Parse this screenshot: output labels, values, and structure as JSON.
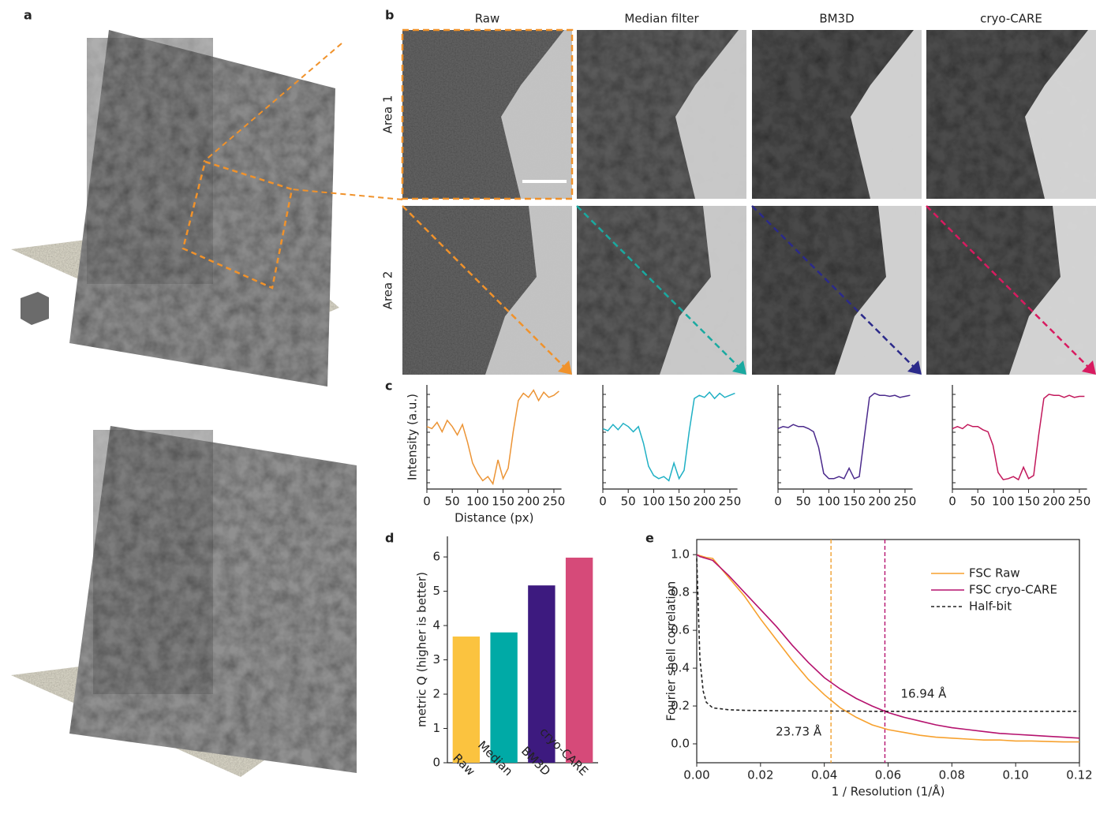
{
  "panels": {
    "letters": [
      "a",
      "b",
      "c",
      "d",
      "e"
    ],
    "columns": [
      "Raw",
      "Median filter",
      "BM3D",
      "cryo-CARE"
    ],
    "rows": [
      "Area 1",
      "Area 2"
    ],
    "arrow_colors": [
      "#f0922b",
      "#1aa9a0",
      "#2b2a8a",
      "#d81b60"
    ]
  },
  "chart_data": [
    {
      "type": "line",
      "ylabel": "Intensity (a.u.)",
      "xlabel": "Distance (px)",
      "xlim": [
        0,
        265
      ],
      "ylim": [
        0,
        1
      ],
      "xticks": [
        0,
        50,
        100,
        150,
        200,
        250
      ],
      "x": [
        0,
        10,
        20,
        30,
        40,
        50,
        60,
        70,
        80,
        90,
        100,
        110,
        120,
        130,
        140,
        150,
        160,
        170,
        180,
        190,
        200,
        210,
        220,
        230,
        240,
        250,
        260
      ],
      "series": [
        {
          "color": "#ec9435",
          "values": [
            0.6,
            0.58,
            0.64,
            0.55,
            0.66,
            0.6,
            0.52,
            0.62,
            0.45,
            0.25,
            0.15,
            0.08,
            0.12,
            0.05,
            0.28,
            0.1,
            0.2,
            0.55,
            0.85,
            0.92,
            0.88,
            0.95,
            0.85,
            0.93,
            0.88,
            0.9,
            0.94
          ]
        }
      ]
    },
    {
      "type": "line",
      "xlim": [
        0,
        265
      ],
      "ylim": [
        0,
        1
      ],
      "xticks": [
        0,
        50,
        100,
        150,
        200,
        250
      ],
      "x": [
        0,
        10,
        20,
        30,
        40,
        50,
        60,
        70,
        80,
        90,
        100,
        110,
        120,
        130,
        140,
        150,
        160,
        170,
        180,
        190,
        200,
        210,
        220,
        230,
        240,
        250,
        260
      ],
      "series": [
        {
          "color": "#1fb0c4",
          "values": [
            0.58,
            0.56,
            0.62,
            0.57,
            0.63,
            0.6,
            0.55,
            0.6,
            0.44,
            0.22,
            0.13,
            0.1,
            0.12,
            0.08,
            0.25,
            0.1,
            0.18,
            0.55,
            0.87,
            0.9,
            0.88,
            0.93,
            0.87,
            0.92,
            0.88,
            0.9,
            0.92
          ]
        }
      ]
    },
    {
      "type": "line",
      "xlim": [
        0,
        265
      ],
      "ylim": [
        0,
        1
      ],
      "xticks": [
        0,
        50,
        100,
        150,
        200,
        250
      ],
      "x": [
        0,
        10,
        20,
        30,
        40,
        50,
        60,
        70,
        80,
        90,
        100,
        110,
        120,
        130,
        140,
        150,
        160,
        170,
        180,
        190,
        200,
        210,
        220,
        230,
        240,
        250,
        260
      ],
      "series": [
        {
          "color": "#4b2a8c",
          "values": [
            0.58,
            0.6,
            0.59,
            0.62,
            0.6,
            0.6,
            0.58,
            0.55,
            0.4,
            0.15,
            0.1,
            0.1,
            0.12,
            0.1,
            0.2,
            0.1,
            0.12,
            0.5,
            0.88,
            0.92,
            0.9,
            0.9,
            0.89,
            0.9,
            0.88,
            0.89,
            0.9
          ]
        }
      ]
    },
    {
      "type": "line",
      "xlim": [
        0,
        265
      ],
      "ylim": [
        0,
        1
      ],
      "xticks": [
        0,
        50,
        100,
        150,
        200,
        250
      ],
      "x": [
        0,
        10,
        20,
        30,
        40,
        50,
        60,
        70,
        80,
        90,
        100,
        110,
        120,
        130,
        140,
        150,
        160,
        170,
        180,
        190,
        200,
        210,
        220,
        230,
        240,
        250,
        260
      ],
      "series": [
        {
          "color": "#c2185b",
          "values": [
            0.58,
            0.6,
            0.58,
            0.62,
            0.6,
            0.6,
            0.57,
            0.55,
            0.42,
            0.16,
            0.09,
            0.1,
            0.12,
            0.09,
            0.21,
            0.1,
            0.13,
            0.52,
            0.87,
            0.91,
            0.9,
            0.9,
            0.88,
            0.9,
            0.88,
            0.89,
            0.89
          ]
        }
      ]
    },
    {
      "type": "bar",
      "ylabel": "metric Q (higher is better)",
      "categories": [
        "Raw",
        "Median",
        "BM3D",
        "cryo-CARE"
      ],
      "values": [
        3.68,
        3.8,
        5.17,
        5.98
      ],
      "colors": [
        "#fbc33f",
        "#00aaa6",
        "#3d1a7f",
        "#d64a79"
      ],
      "ylim": [
        0,
        6.6
      ],
      "yticks": [
        0,
        1,
        2,
        3,
        4,
        5,
        6
      ]
    },
    {
      "type": "line",
      "ylabel": "Fourier shell correlation",
      "xlabel": "1 / Resolution (1/Å)",
      "xlim": [
        0,
        0.12
      ],
      "ylim": [
        -0.1,
        1.08
      ],
      "xticks": [
        {
          "value": 0,
          "label": "0.00"
        },
        {
          "value": 0.02,
          "label": "0.02"
        },
        {
          "value": 0.04,
          "label": "0.04"
        },
        {
          "value": 0.06,
          "label": "0.06"
        },
        {
          "value": 0.08,
          "label": "0.08"
        },
        {
          "value": 0.1,
          "label": "0.10"
        },
        {
          "value": 0.12,
          "label": "0.12"
        }
      ],
      "yticks": [
        {
          "value": 0,
          "label": "0.0"
        },
        {
          "value": 0.2,
          "label": "0.2"
        },
        {
          "value": 0.4,
          "label": "0.4"
        },
        {
          "value": 0.6,
          "label": "0.6"
        },
        {
          "value": 0.8,
          "label": "0.8"
        },
        {
          "value": 1,
          "label": "1.0"
        }
      ],
      "x": [
        0,
        0.001,
        0.002,
        0.003,
        0.005,
        0.01,
        0.015,
        0.02,
        0.025,
        0.03,
        0.035,
        0.04,
        0.045,
        0.05,
        0.055,
        0.06,
        0.065,
        0.07,
        0.075,
        0.08,
        0.085,
        0.09,
        0.095,
        0.1,
        0.105,
        0.11,
        0.115,
        0.12
      ],
      "series": [
        {
          "name": "FSC Raw",
          "color": "#f7a12e",
          "values": [
            1.0,
            0.995,
            0.99,
            0.985,
            0.98,
            0.88,
            0.78,
            0.66,
            0.55,
            0.44,
            0.34,
            0.26,
            0.19,
            0.14,
            0.1,
            0.075,
            0.06,
            0.045,
            0.035,
            0.03,
            0.025,
            0.02,
            0.02,
            0.015,
            0.015,
            0.012,
            0.01,
            0.01
          ]
        },
        {
          "name": "FSC cryo-CARE",
          "color": "#b5126e",
          "values": [
            1.0,
            0.99,
            0.985,
            0.98,
            0.97,
            0.89,
            0.8,
            0.71,
            0.62,
            0.52,
            0.43,
            0.35,
            0.29,
            0.24,
            0.2,
            0.165,
            0.14,
            0.12,
            0.1,
            0.085,
            0.075,
            0.065,
            0.055,
            0.05,
            0.045,
            0.04,
            0.035,
            0.03
          ]
        },
        {
          "name": "Half-bit",
          "color": "#222222",
          "dashed": true,
          "values": [
            0.98,
            0.45,
            0.28,
            0.22,
            0.19,
            0.18,
            0.177,
            0.176,
            0.175,
            0.174,
            0.174,
            0.173,
            0.173,
            0.173,
            0.172,
            0.172,
            0.172,
            0.172,
            0.172,
            0.172,
            0.172,
            0.172,
            0.172,
            0.172,
            0.172,
            0.172,
            0.172,
            0.172
          ]
        }
      ],
      "vlines": [
        {
          "x": 0.0421,
          "color": "#f0a030",
          "label": "23.73 Å"
        },
        {
          "x": 0.059,
          "color": "#b5126e",
          "label": "16.94 Å"
        }
      ]
    }
  ]
}
